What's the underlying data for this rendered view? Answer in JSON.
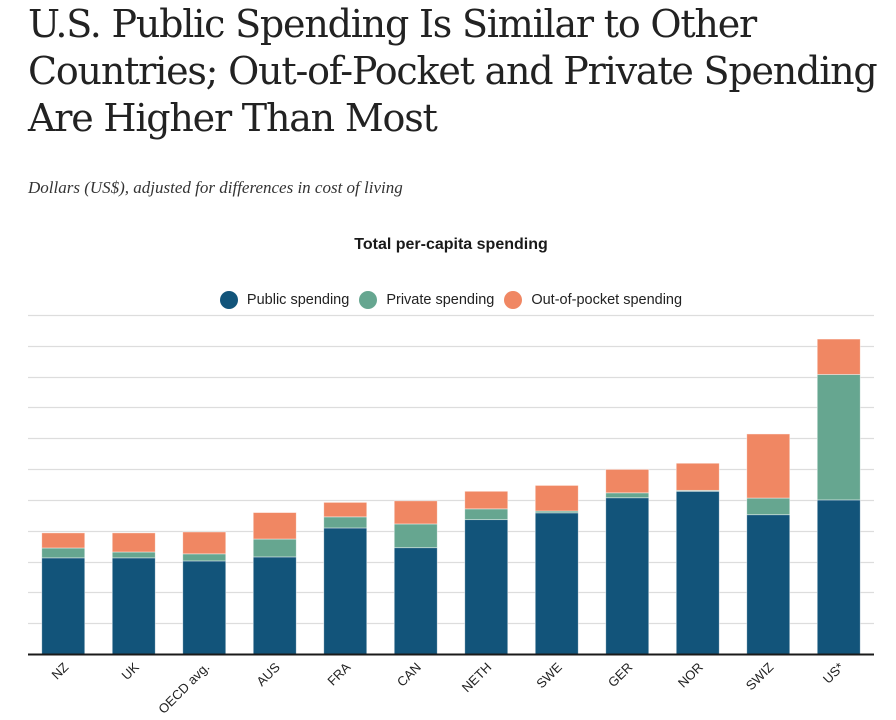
{
  "header": {
    "title": "U.S. Public Spending Is Similar to Other Countries; Out-of-Pocket and Private Spending Are Higher Than Most",
    "subtitle": "Dollars (US$), adjusted for differences in cost of living"
  },
  "colors": {
    "public": "#12547a",
    "private": "#66a690",
    "out_of_pocket": "#f08763",
    "grid": "#dddddd",
    "axis": "#1a1a1a"
  },
  "legend": [
    {
      "label": "Public spending",
      "color_key": "public"
    },
    {
      "label": "Private spending",
      "color_key": "private"
    },
    {
      "label": "Out-of-pocket spending",
      "color_key": "out_of_pocket"
    }
  ],
  "chart_data": {
    "type": "bar",
    "stacked": true,
    "title": "Total per-capita spending",
    "xlabel": "",
    "ylabel": "",
    "categories": [
      "NZ",
      "UK",
      "OECD avg.",
      "AUS",
      "FRA",
      "CAN",
      "NETH",
      "SWE",
      "GER",
      "NOR",
      "SWIZ",
      "US*"
    ],
    "series": [
      {
        "name": "Public spending",
        "color_key": "public",
        "values": [
          3120,
          3120,
          3020,
          3150,
          4090,
          3450,
          4360,
          4580,
          5070,
          5280,
          4520,
          5000
        ]
      },
      {
        "name": "Private spending",
        "color_key": "private",
        "values": [
          320,
          190,
          230,
          580,
          360,
          770,
          350,
          60,
          160,
          30,
          540,
          4070
        ]
      },
      {
        "name": "Out-of-pocket spending",
        "color_key": "out_of_pocket",
        "values": [
          490,
          620,
          710,
          860,
          470,
          750,
          570,
          830,
          760,
          880,
          2080,
          1150
        ]
      }
    ],
    "ylim": [
      0,
      11000
    ],
    "ytick_step": 1000,
    "y_tick_labels_shown": false,
    "grid": true,
    "legend_position": "top-center",
    "x_label_rotation_deg": -45
  }
}
